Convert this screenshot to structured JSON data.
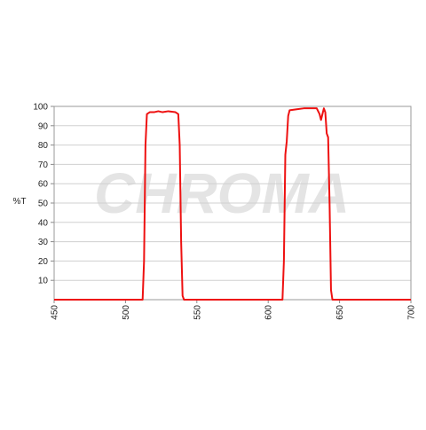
{
  "chart_data": {
    "type": "line",
    "watermark": "CHROMA",
    "y_label": "%T",
    "x": [
      450,
      512,
      513,
      514,
      515,
      517,
      520,
      523,
      526,
      530,
      535,
      537,
      538,
      539,
      540,
      541,
      610,
      611,
      612,
      613,
      614,
      615,
      620,
      625,
      630,
      634,
      636,
      637,
      638,
      639,
      640,
      641,
      642,
      643,
      644,
      645,
      700
    ],
    "series": [
      {
        "color": "#ee1111",
        "values": [
          0,
          0,
          20,
          80,
          96,
          97,
          97,
          97.5,
          97,
          97.5,
          97,
          96,
          80,
          30,
          2,
          0,
          0,
          20,
          75,
          82,
          95,
          98,
          98.5,
          99,
          99,
          99,
          96,
          93,
          96,
          99,
          97,
          86,
          84,
          50,
          5,
          0,
          0
        ]
      }
    ],
    "xlim": [
      450,
      700
    ],
    "xticks": [
      450,
      500,
      550,
      600,
      650,
      700
    ],
    "ylim": [
      0,
      100
    ],
    "yticks": [
      10,
      20,
      30,
      40,
      50,
      60,
      70,
      80,
      90,
      100
    ],
    "grid": true
  }
}
